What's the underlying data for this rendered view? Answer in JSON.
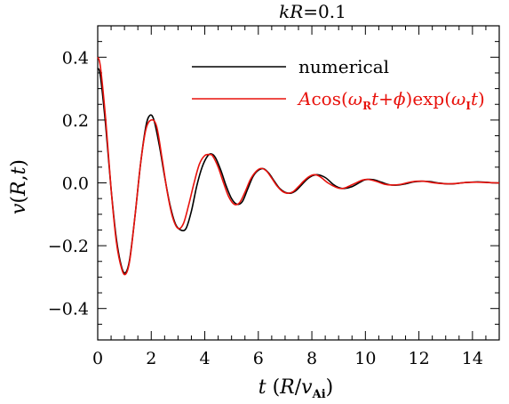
{
  "chart_data": {
    "type": "line",
    "title": "kR=0.1",
    "title_parts": {
      "k": "k",
      "R": "R",
      "eq": "=0.1"
    },
    "xlabel": "t (R/v_Ai)",
    "xlabel_parts": {
      "t": "t",
      "open": " (",
      "R": "R",
      "slash": "/",
      "v": "v",
      "sub": "Ai",
      "close": ")"
    },
    "ylabel": "v(R,t)",
    "ylabel_parts": {
      "v": "v",
      "open": "(",
      "R": "R",
      "comma": ",",
      "t": "t",
      "close": ")"
    },
    "xlim": [
      0,
      15
    ],
    "ylim": [
      -0.5,
      0.5
    ],
    "xticks": [
      0,
      2,
      4,
      6,
      8,
      10,
      12,
      14
    ],
    "yticks": [
      -0.4,
      -0.2,
      0.0,
      0.2,
      0.4
    ],
    "xtick_labels": [
      "0",
      "2",
      "4",
      "6",
      "8",
      "10",
      "12",
      "14"
    ],
    "ytick_labels": [
      "−0.4",
      "−0.2",
      "0.0",
      "0.2",
      "0.4"
    ],
    "grid": false,
    "legend_position": "top-right",
    "series": [
      {
        "name": "numerical",
        "color": "#000000",
        "x": [
          0,
          0.1,
          0.3,
          0.5,
          0.7,
          0.9,
          1.05,
          1.2,
          1.4,
          1.6,
          1.8,
          1.95,
          2.1,
          2.3,
          2.5,
          2.7,
          2.9,
          3.1,
          3.3,
          3.5,
          3.7,
          3.9,
          4.1,
          4.25,
          4.4,
          4.6,
          4.8,
          5.0,
          5.2,
          5.4,
          5.6,
          5.8,
          6.0,
          6.2,
          6.4,
          6.6,
          6.8,
          7.0,
          7.2,
          7.4,
          7.6,
          7.8,
          8.0,
          8.2,
          8.5,
          8.8,
          9.0,
          9.2,
          9.5,
          9.8,
          10.0,
          10.3,
          10.6,
          10.9,
          11.2,
          11.5,
          11.8,
          12.1,
          12.4,
          12.7,
          13.0,
          13.3,
          13.6,
          13.9,
          14.2,
          14.5,
          14.8,
          15.0
        ],
        "y": [
          0.365,
          0.34,
          0.18,
          -0.02,
          -0.18,
          -0.27,
          -0.285,
          -0.24,
          -0.1,
          0.06,
          0.18,
          0.215,
          0.2,
          0.12,
          0.02,
          -0.07,
          -0.13,
          -0.15,
          -0.145,
          -0.09,
          -0.01,
          0.05,
          0.085,
          0.092,
          0.08,
          0.04,
          -0.01,
          -0.05,
          -0.068,
          -0.06,
          -0.02,
          0.02,
          0.04,
          0.045,
          0.03,
          0.005,
          -0.018,
          -0.03,
          -0.033,
          -0.025,
          -0.008,
          0.01,
          0.022,
          0.026,
          0.017,
          -0.005,
          -0.015,
          -0.018,
          -0.012,
          0.002,
          0.01,
          0.01,
          0.002,
          -0.006,
          -0.007,
          -0.003,
          0.003,
          0.005,
          0.004,
          0.0,
          -0.003,
          -0.003,
          0.0,
          0.002,
          0.003,
          0.002,
          0.0,
          0.0
        ]
      },
      {
        "name_parts": {
          "A": "A",
          "cos": "cos(",
          "omega1": "ω",
          "subR": "R",
          "t1": "t",
          "plus": "+",
          "phi": "ϕ",
          "exp": ")exp(",
          "omega2": "ω",
          "subI": "I",
          "t2": "t",
          "close": ")"
        },
        "name": "Acos(ω_R t+ϕ)exp(ω_I t)",
        "color": "#e8120c",
        "x": [
          0,
          0.1,
          0.3,
          0.5,
          0.7,
          0.9,
          1.05,
          1.2,
          1.4,
          1.6,
          1.8,
          2.0,
          2.2,
          2.4,
          2.6,
          2.8,
          3.0,
          3.2,
          3.4,
          3.6,
          3.8,
          4.0,
          4.2,
          4.3,
          4.5,
          4.7,
          4.9,
          5.1,
          5.3,
          5.5,
          5.7,
          5.9,
          6.1,
          6.3,
          6.5,
          6.7,
          6.9,
          7.1,
          7.3,
          7.5,
          7.7,
          7.9,
          8.1,
          8.3,
          8.6,
          8.9,
          9.1,
          9.3,
          9.6,
          9.9,
          10.1,
          10.4,
          10.7,
          11.0,
          11.3,
          11.6,
          11.9,
          12.2,
          12.5,
          12.8,
          13.1,
          13.4,
          13.7,
          14.0,
          14.3,
          14.6,
          14.9,
          15.0
        ],
        "y": [
          0.4,
          0.37,
          0.2,
          -0.02,
          -0.19,
          -0.275,
          -0.29,
          -0.245,
          -0.1,
          0.06,
          0.17,
          0.2,
          0.18,
          0.08,
          -0.03,
          -0.11,
          -0.145,
          -0.13,
          -0.07,
          0.0,
          0.06,
          0.087,
          0.09,
          0.085,
          0.05,
          0.0,
          -0.045,
          -0.068,
          -0.063,
          -0.03,
          0.01,
          0.035,
          0.046,
          0.038,
          0.015,
          -0.01,
          -0.027,
          -0.033,
          -0.028,
          -0.012,
          0.006,
          0.02,
          0.026,
          0.02,
          0.0,
          -0.014,
          -0.018,
          -0.014,
          -0.002,
          0.009,
          0.011,
          0.005,
          -0.004,
          -0.007,
          -0.005,
          0.001,
          0.005,
          0.005,
          0.001,
          -0.002,
          -0.003,
          -0.002,
          0.001,
          0.002,
          0.002,
          0.001,
          0.0,
          0.0
        ]
      }
    ]
  }
}
